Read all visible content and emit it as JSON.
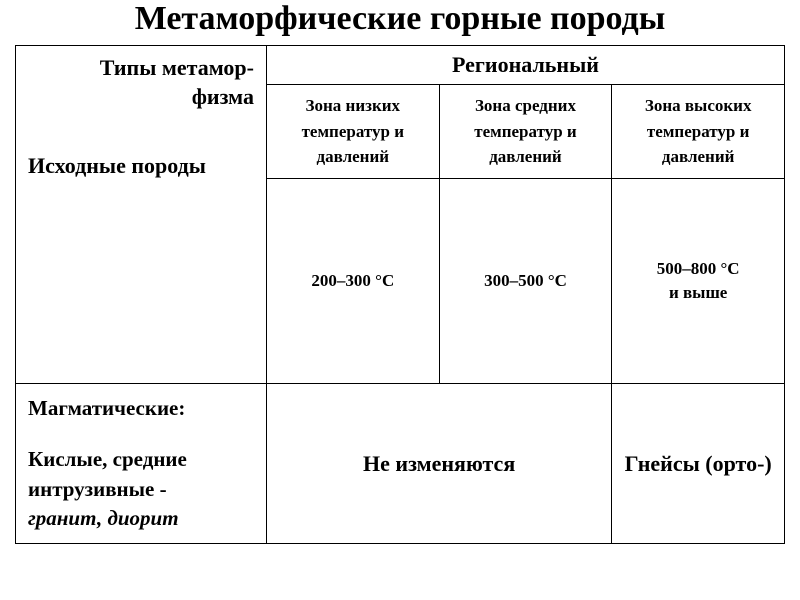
{
  "title": "Метаморфические горные породы",
  "table": {
    "left_header_top": "Типы метамор-\nфизма",
    "left_header_bottom": "Исходные породы",
    "regional": "Региональный",
    "zones": [
      "Зона низких температур и давлений",
      "Зона средних температур и давлений",
      "Зона высоких температур и давлений"
    ],
    "temps": [
      {
        "main": "200–300 °C",
        "extra": ""
      },
      {
        "main": "300–500 °C",
        "extra": ""
      },
      {
        "main": "500–800 °C",
        "extra": "и выше"
      }
    ],
    "row1": {
      "source_title": "Магматические:",
      "source_sub": "Кислые, средние интрузивные -",
      "source_examples": "гранит, диорит",
      "result_low_mid": "Не изменяются",
      "result_high": "Гнейсы (орто-)"
    }
  },
  "colors": {
    "background": "#ffffff",
    "text": "#000000",
    "border": "#000000"
  }
}
